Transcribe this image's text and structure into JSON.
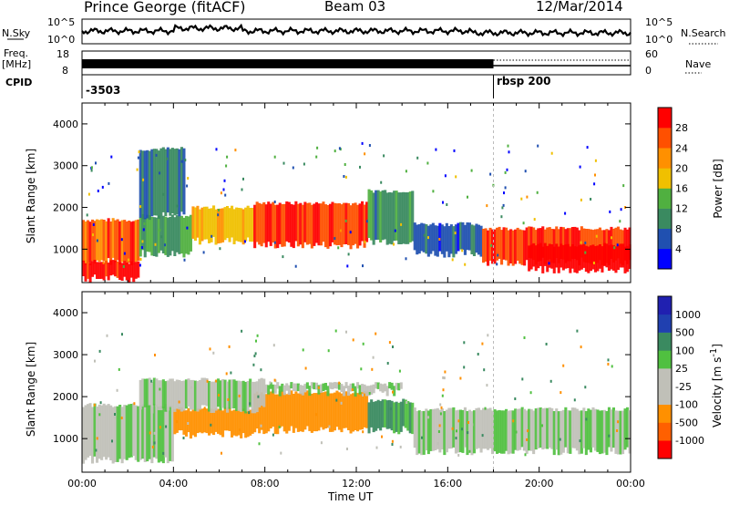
{
  "header": {
    "station": "Prince George (fitACF)",
    "beam": "Beam 03",
    "date": "12/Mar/2014"
  },
  "noise_panel": {
    "left_label": "N.Sky",
    "right_label": "N.Search",
    "tick_top": "10^5",
    "tick_bottom": "10^0",
    "right_tick_top": "10^5",
    "right_tick_bottom": "10^0"
  },
  "freq_panel": {
    "left_label_1": "Freq.",
    "left_label_2": "[MHz]",
    "tick_top": "18",
    "tick_bottom": "8",
    "right_label": "Nave",
    "right_tick_top": "60",
    "right_tick_bottom": "0"
  },
  "cpid_panel": {
    "label": "CPID",
    "segments": [
      {
        "start_hour": 0,
        "text": "-3503"
      },
      {
        "start_hour": 18,
        "text": "rbsp 200"
      }
    ]
  },
  "colors": {
    "power": [
      "#0000ff",
      "#2050b0",
      "#3a8a60",
      "#50b040",
      "#f0c000",
      "#ff9000",
      "#ff5000",
      "#ff0000"
    ],
    "velocity": [
      "#ff0000",
      "#ff6000",
      "#ff9000",
      "#c0c0b8",
      "#c0c0b8",
      "#50c040",
      "#3a8a60",
      "#2040b0",
      "#2020b0"
    ]
  },
  "chart_data": [
    {
      "type": "heatmap",
      "name": "power",
      "xlabel": "",
      "ylabel": "Slant Range [km]",
      "xlim": [
        0,
        24
      ],
      "ylim": [
        200,
        4500
      ],
      "yticks": [
        1000,
        2000,
        3000,
        4000
      ],
      "colorbar_label": "Power [dB]",
      "colorbar_ticks": [
        "4",
        "8",
        "12",
        "16",
        "20",
        "24",
        "28"
      ],
      "colorbar_range": [
        0,
        30
      ],
      "bands": [
        {
          "t0": 0.0,
          "t1": 2.5,
          "r0": 700,
          "r1": 1700,
          "value": 24
        },
        {
          "t0": 0.0,
          "t1": 2.5,
          "r0": 300,
          "r1": 700,
          "value": 28
        },
        {
          "t0": 2.5,
          "t1": 4.8,
          "r0": 900,
          "r1": 1800,
          "value": 12
        },
        {
          "t0": 2.5,
          "t1": 4.5,
          "r0": 1800,
          "r1": 3400,
          "value": 8
        },
        {
          "t0": 4.8,
          "t1": 7.5,
          "r0": 1200,
          "r1": 2000,
          "value": 18
        },
        {
          "t0": 7.5,
          "t1": 12.5,
          "r0": 1100,
          "r1": 2100,
          "value": 26
        },
        {
          "t0": 12.5,
          "t1": 14.5,
          "r0": 1200,
          "r1": 2400,
          "value": 10
        },
        {
          "t0": 14.5,
          "t1": 17.5,
          "r0": 900,
          "r1": 1600,
          "value": 6
        },
        {
          "t0": 17.5,
          "t1": 24.0,
          "r0": 700,
          "r1": 1500,
          "value": 26
        },
        {
          "t0": 19.5,
          "t1": 24.0,
          "r0": 500,
          "r1": 1100,
          "value": 30
        }
      ]
    },
    {
      "type": "heatmap",
      "name": "velocity",
      "xlabel": "Time UT",
      "ylabel": "Slant Range [km]",
      "xlim": [
        0,
        24
      ],
      "ylim": [
        200,
        4500
      ],
      "yticks": [
        1000,
        2000,
        3000,
        4000
      ],
      "xtick_labels": [
        "00:00",
        "04:00",
        "08:00",
        "12:00",
        "16:00",
        "20:00",
        "00:00"
      ],
      "colorbar_label": "Velocity [m s^-1]",
      "colorbar_ticks": [
        "-1000",
        "-500",
        "-100",
        "-25",
        "25",
        "100",
        "500",
        "1000"
      ],
      "bands": [
        {
          "t0": 0.0,
          "t1": 4.0,
          "r0": 500,
          "r1": 1800,
          "value": 0
        },
        {
          "t0": 4.0,
          "t1": 7.5,
          "r0": 1100,
          "r1": 1700,
          "value": -300
        },
        {
          "t0": 7.5,
          "t1": 12.5,
          "r0": 1200,
          "r1": 2100,
          "value": -300
        },
        {
          "t0": 12.5,
          "t1": 14.5,
          "r0": 1200,
          "r1": 1900,
          "value": 120
        },
        {
          "t0": 14.5,
          "t1": 24.0,
          "r0": 700,
          "r1": 1700,
          "value": 0
        },
        {
          "t0": 2.5,
          "t1": 8.0,
          "r0": 1700,
          "r1": 2400,
          "value": 0
        },
        {
          "t0": 8.0,
          "t1": 14.0,
          "r0": 2100,
          "r1": 2300,
          "value": 0
        }
      ]
    }
  ]
}
